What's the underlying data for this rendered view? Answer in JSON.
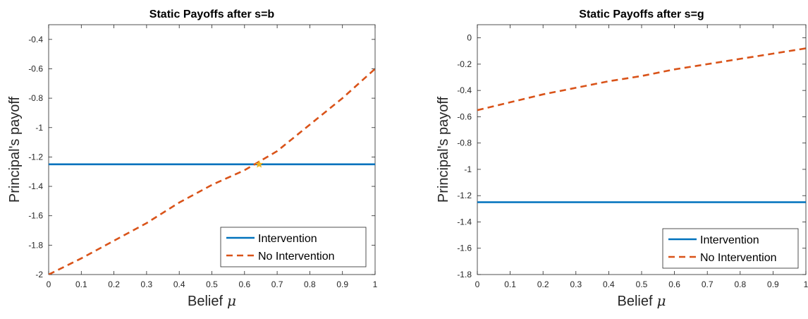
{
  "chart_data": [
    {
      "type": "line",
      "title": "Static Payoffs after s=b",
      "xlabel": "Belief",
      "xlabel_symbol": "μ",
      "ylabel": "Principal's payoff",
      "xlim": [
        0,
        1
      ],
      "ylim": [
        -2,
        -0.3
      ],
      "xticks": [
        "0",
        "0.1",
        "0.2",
        "0.3",
        "0.4",
        "0.5",
        "0.6",
        "0.7",
        "0.8",
        "0.9",
        "1"
      ],
      "yticks": [
        "-2",
        "-1.8",
        "-1.6",
        "-1.4",
        "-1.2",
        "-1",
        "-0.8",
        "-0.6",
        "-0.4"
      ],
      "grid": false,
      "legend_position": "bottom-right",
      "series": [
        {
          "name": "Intervention",
          "style": "solid",
          "color": "#0072BD",
          "x": [
            0,
            1
          ],
          "y": [
            -1.25,
            -1.25
          ]
        },
        {
          "name": "No Intervention",
          "style": "dashed",
          "color": "#D95319",
          "x": [
            0,
            0.1,
            0.2,
            0.3,
            0.4,
            0.5,
            0.6,
            0.7,
            0.8,
            0.9,
            1
          ],
          "y": [
            -2,
            -1.89,
            -1.77,
            -1.65,
            -1.51,
            -1.39,
            -1.29,
            -1.16,
            -0.98,
            -0.8,
            -0.6
          ]
        }
      ],
      "marker": {
        "x": 0.645,
        "y": -1.25,
        "color": "#EDB120",
        "shape": "star"
      }
    },
    {
      "type": "line",
      "title": "Static Payoffs after s=g",
      "xlabel": "Belief",
      "xlabel_symbol": "μ",
      "ylabel": "Principal's payoff",
      "xlim": [
        0,
        1
      ],
      "ylim": [
        -1.8,
        0.1
      ],
      "xticks": [
        "0",
        "0.1",
        "0.2",
        "0.3",
        "0.4",
        "0.5",
        "0.6",
        "0.7",
        "0.8",
        "0.9",
        "1"
      ],
      "yticks": [
        "-1.8",
        "-1.6",
        "-1.4",
        "-1.2",
        "-1",
        "-0.8",
        "-0.6",
        "-0.4",
        "-0.2",
        "0"
      ],
      "grid": false,
      "legend_position": "bottom-right",
      "series": [
        {
          "name": "Intervention",
          "style": "solid",
          "color": "#0072BD",
          "x": [
            0,
            1
          ],
          "y": [
            -1.25,
            -1.25
          ]
        },
        {
          "name": "No Intervention",
          "style": "dashed",
          "color": "#D95319",
          "x": [
            0,
            0.1,
            0.2,
            0.3,
            0.4,
            0.5,
            0.6,
            0.7,
            0.8,
            0.9,
            1
          ],
          "y": [
            -0.55,
            -0.49,
            -0.43,
            -0.38,
            -0.33,
            -0.29,
            -0.24,
            -0.2,
            -0.16,
            -0.12,
            -0.08
          ]
        }
      ]
    }
  ]
}
